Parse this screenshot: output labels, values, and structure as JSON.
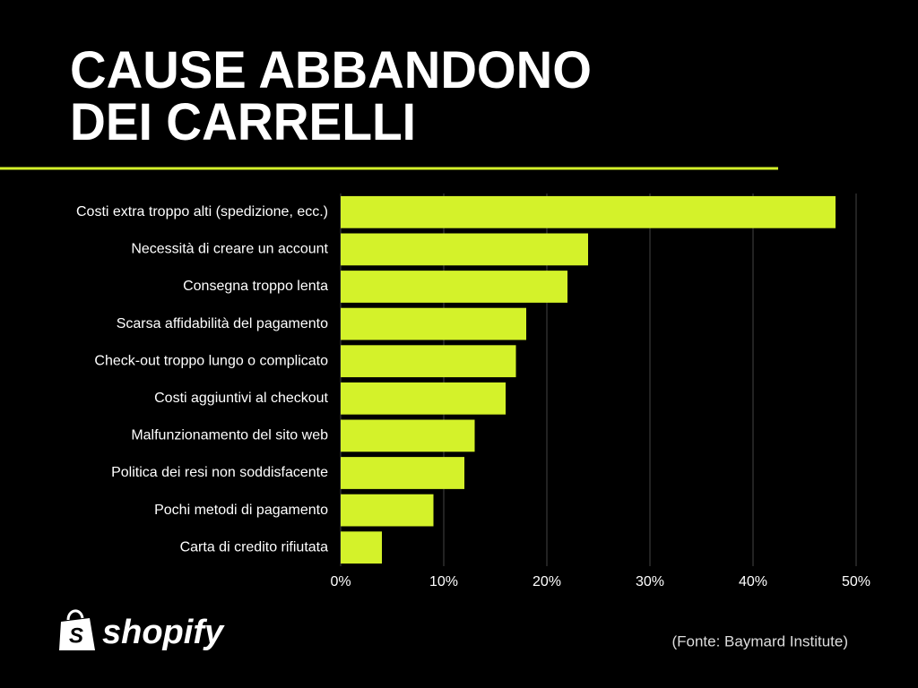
{
  "chart_data": {
    "type": "barh",
    "title_lines": [
      "CAUSE ABBANDONO",
      "DEI CARRELLI"
    ],
    "categories": [
      "Costi extra troppo alti (spedizione, ecc.)",
      "Necessità di creare un account",
      "Consegna troppo lenta",
      "Scarsa affidabilità del pagamento",
      "Check-out troppo lungo o complicato",
      "Costi aggiuntivi al checkout",
      "Malfunzionamento del sito web",
      "Politica dei resi non soddisfacente",
      "Pochi metodi di pagamento",
      "Carta di credito rifiutata"
    ],
    "values": [
      48,
      24,
      22,
      18,
      17,
      16,
      13,
      12,
      9,
      4
    ],
    "color": "#d4f22a",
    "xlim": [
      0,
      50
    ],
    "xticks": [
      {
        "value": 0,
        "label": "0%"
      },
      {
        "value": 10,
        "label": "10%"
      },
      {
        "value": 20,
        "label": "20%"
      },
      {
        "value": 30,
        "label": "30%"
      },
      {
        "value": 40,
        "label": "40%"
      },
      {
        "value": 50,
        "label": "50%"
      }
    ],
    "grid": true,
    "source": "(Fonte: Baymard Institute)",
    "logo": "shopify"
  }
}
